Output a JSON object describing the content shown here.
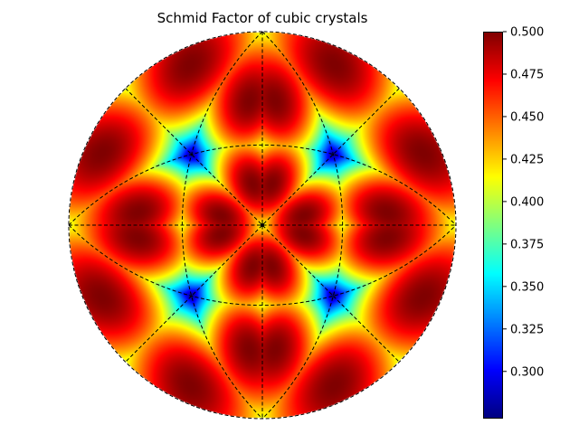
{
  "chart_data": {
    "type": "heatmap",
    "title": "Schmid Factor of cubic crystals",
    "projection": "stereographic",
    "colormap": "jet",
    "colorbar": {
      "range": [
        0.2722,
        0.5
      ],
      "ticks": [
        0.3,
        0.325,
        0.35,
        0.375,
        0.4,
        0.425,
        0.45,
        0.475,
        0.5
      ],
      "tick_labels": [
        "0.300",
        "0.325",
        "0.350",
        "0.375",
        "0.400",
        "0.425",
        "0.450",
        "0.475",
        "0.500"
      ]
    },
    "overlay_lines": "dashed black great circles of the cubic symmetry"
  }
}
